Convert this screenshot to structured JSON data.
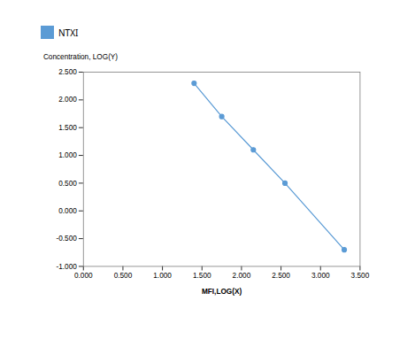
{
  "chart_data": {
    "type": "line",
    "x": [
      1.4,
      1.75,
      2.15,
      2.55,
      3.3
    ],
    "series": [
      {
        "name": "NTXI",
        "color": "#5b9bd5",
        "marker": "circle",
        "values": [
          2.3,
          1.7,
          1.1,
          0.5,
          -0.7
        ]
      }
    ],
    "xlabel": "MFI,LOG(X)",
    "ylabel": "Concentration, LOG(Y)",
    "xlim": [
      0.0,
      3.5
    ],
    "ylim": [
      -1.0,
      2.5
    ],
    "xticks": [
      {
        "value": 0.0,
        "label": "0.000"
      },
      {
        "value": 0.5,
        "label": "0.500"
      },
      {
        "value": 1.0,
        "label": "1.000"
      },
      {
        "value": 1.5,
        "label": "1.500"
      },
      {
        "value": 2.0,
        "label": "2.000"
      },
      {
        "value": 2.5,
        "label": "2.500"
      },
      {
        "value": 3.0,
        "label": "3.000"
      },
      {
        "value": 3.5,
        "label": "3.500"
      }
    ],
    "yticks": [
      {
        "value": -1.0,
        "label": "-1.000"
      },
      {
        "value": -0.5,
        "label": "-0.500"
      },
      {
        "value": 0.0,
        "label": "0.000"
      },
      {
        "value": 0.5,
        "label": "0.500"
      },
      {
        "value": 1.0,
        "label": "1.000"
      },
      {
        "value": 1.5,
        "label": "1.500"
      },
      {
        "value": 2.0,
        "label": "2.000"
      },
      {
        "value": 2.5,
        "label": "2.500"
      }
    ],
    "grid": false,
    "legend": "top"
  }
}
